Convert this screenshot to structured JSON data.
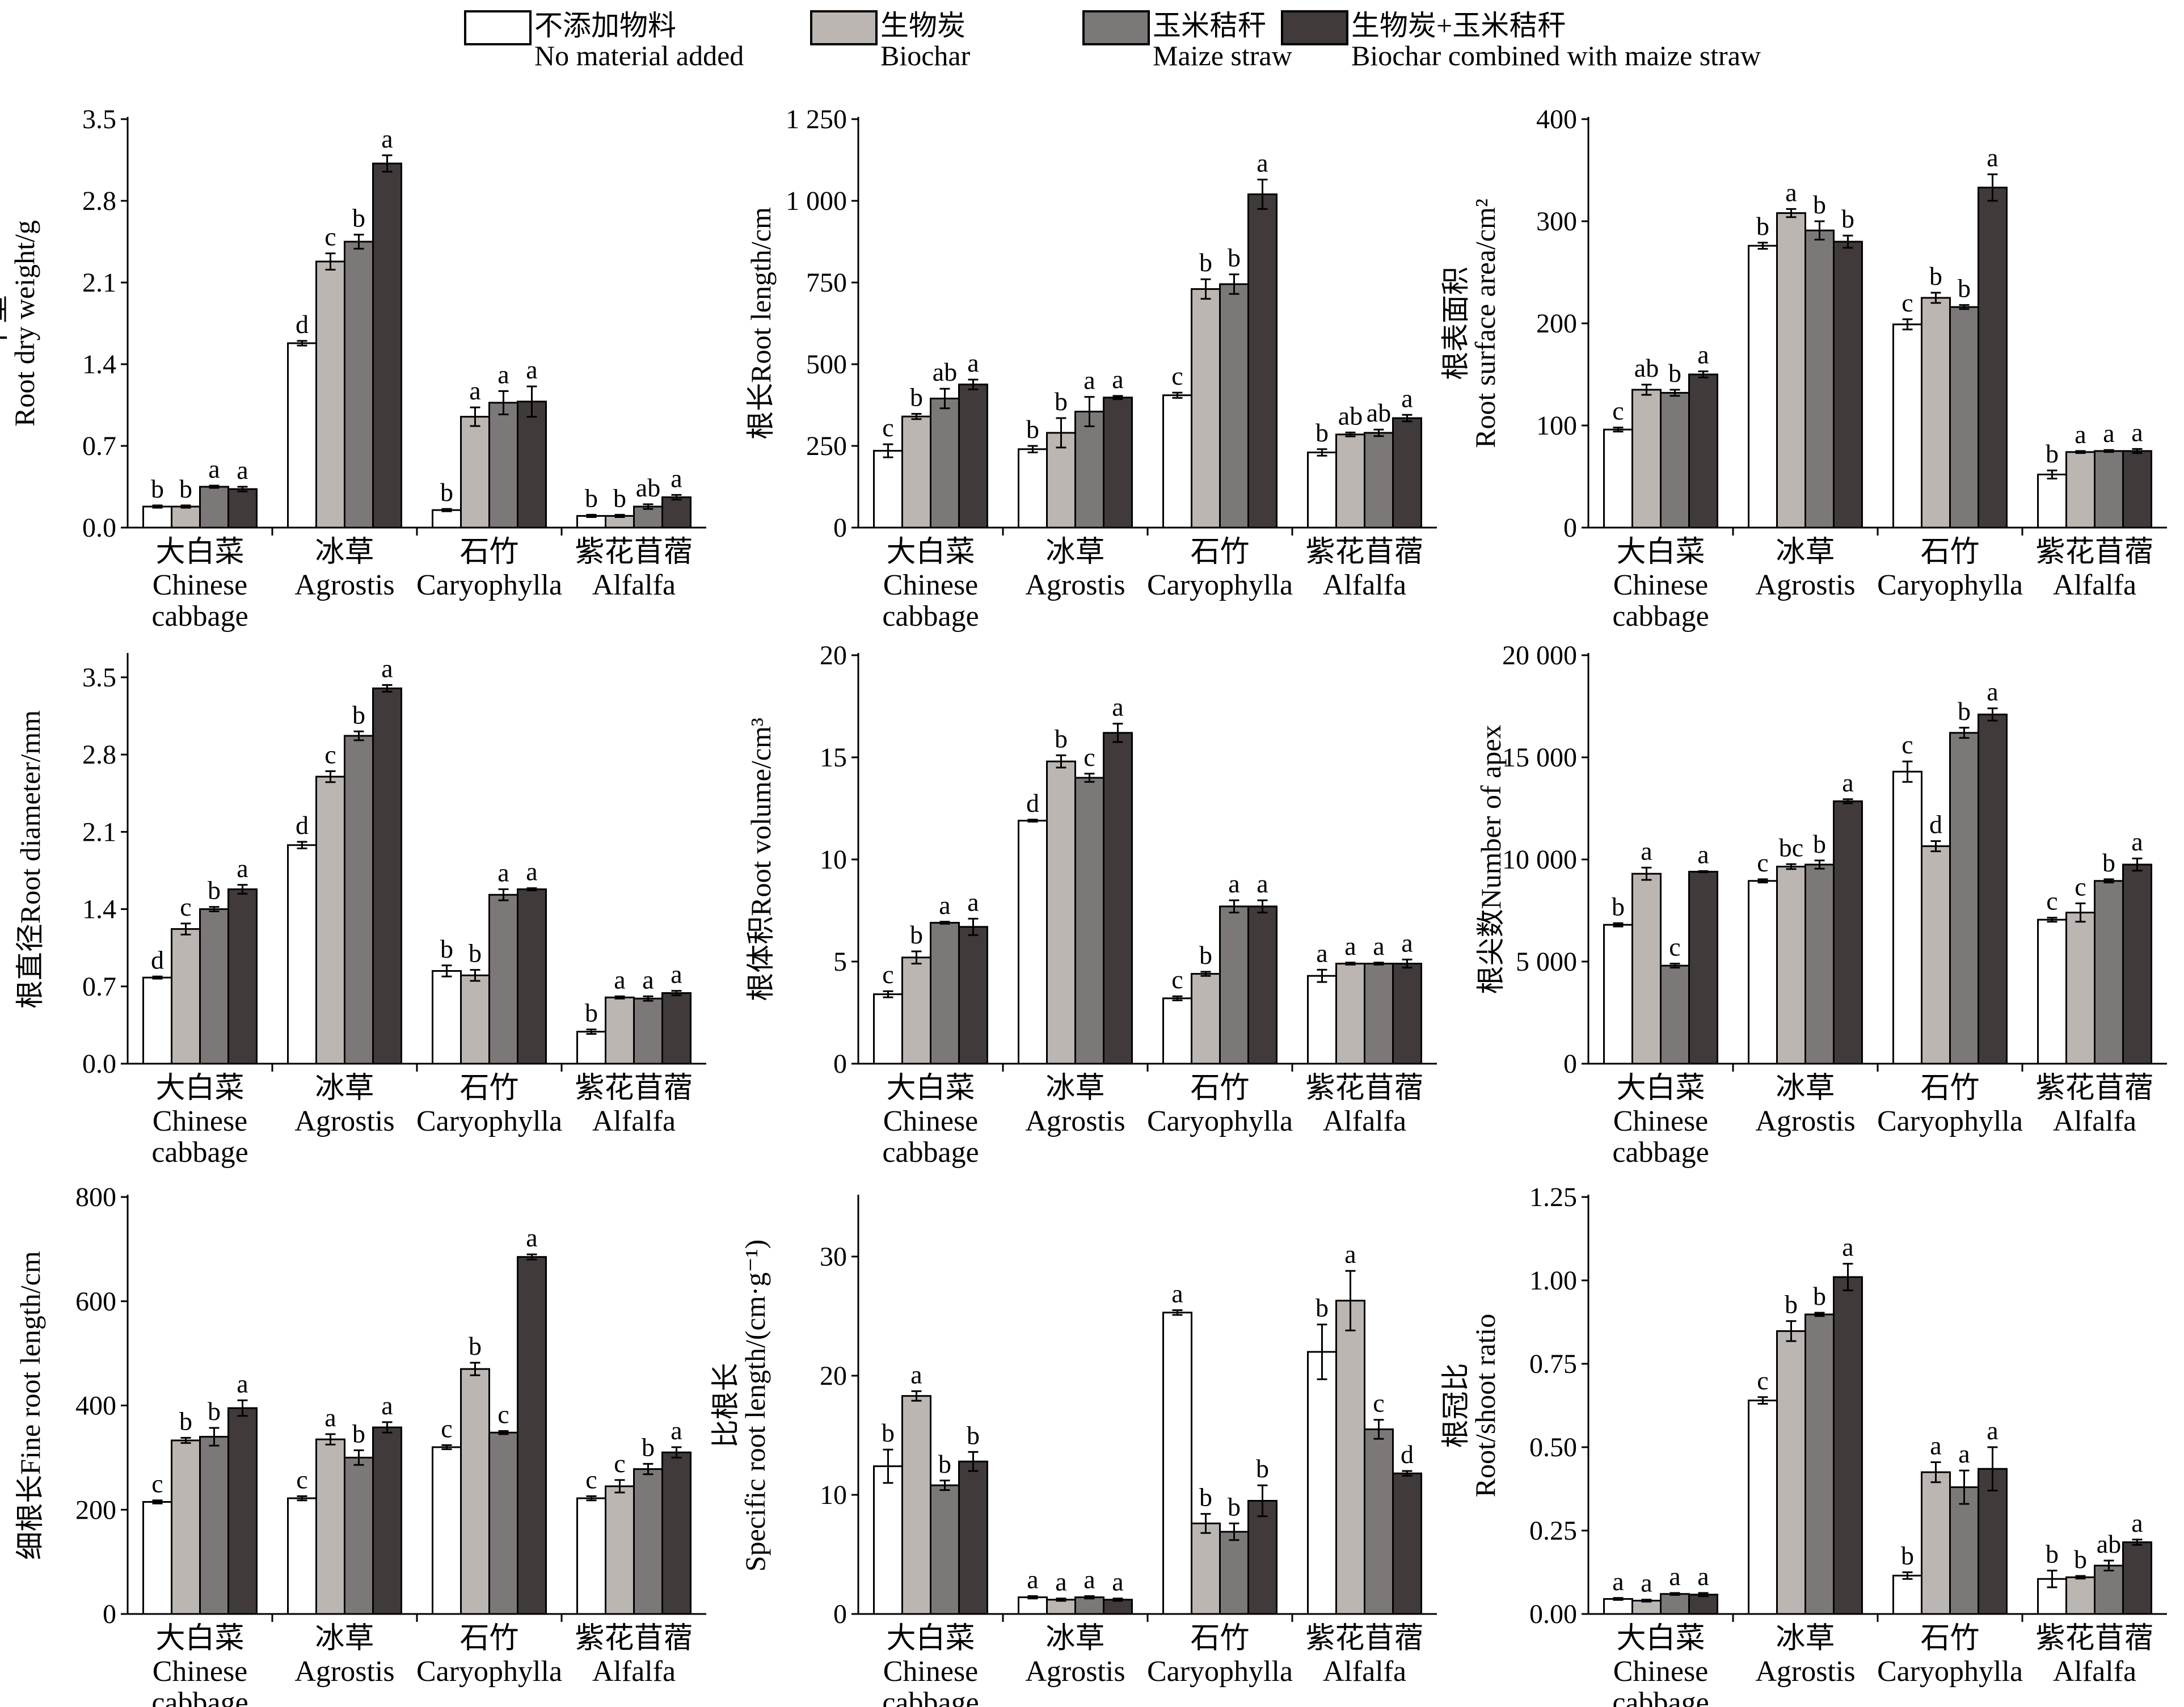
{
  "legend": {
    "items": [
      {
        "zh": "不添加物料",
        "en": "No material added",
        "color": "#ffffff"
      },
      {
        "zh": "生物炭",
        "en": "Biochar",
        "color": "#bcb6b3"
      },
      {
        "zh": "玉米秸秆",
        "en": "Maize straw",
        "color": "#7d7878"
      },
      {
        "zh": "生物炭+玉米秸秆",
        "en": "Biochar combined with maize straw",
        "color": "#403a3a"
      }
    ]
  },
  "categories": [
    {
      "zh": "大白菜",
      "en": [
        "Chinese",
        "cabbage"
      ]
    },
    {
      "zh": "冰草",
      "en": [
        "Agrostis"
      ]
    },
    {
      "zh": "石竹",
      "en": [
        "Caryophylla"
      ]
    },
    {
      "zh": "紫花苜蓿",
      "en": [
        "Alfalfa"
      ]
    }
  ],
  "chart_data": [
    {
      "type": "bar",
      "ylabel_lines": [
        "干重",
        "Root dry weight/g"
      ],
      "ylim": [
        0,
        3.5
      ],
      "yticks": [
        "0.0",
        "0.7",
        "1.4",
        "2.1",
        "2.8",
        "3.5"
      ],
      "ytick_values": [
        0,
        0.7,
        1.4,
        2.1,
        2.8,
        3.5
      ],
      "values": [
        [
          0.18,
          0.18,
          0.35,
          0.33
        ],
        [
          1.58,
          2.28,
          2.45,
          3.12
        ],
        [
          0.15,
          0.95,
          1.07,
          1.08
        ],
        [
          0.1,
          0.1,
          0.18,
          0.26
        ]
      ],
      "errors": [
        [
          0.01,
          0.01,
          0.01,
          0.02
        ],
        [
          0.02,
          0.07,
          0.06,
          0.07
        ],
        [
          0.01,
          0.08,
          0.1,
          0.13
        ],
        [
          0.01,
          0.01,
          0.02,
          0.02
        ]
      ],
      "letters": [
        [
          "b",
          "b",
          "a",
          "a"
        ],
        [
          "d",
          "c",
          "b",
          "a"
        ],
        [
          "b",
          "a",
          "a",
          "a"
        ],
        [
          "b",
          "b",
          "ab",
          "a"
        ]
      ]
    },
    {
      "type": "bar",
      "ylabel_lines": [
        "根长Root length/cm"
      ],
      "ylim": [
        0,
        1250
      ],
      "yticks": [
        "0",
        "250",
        "500",
        "750",
        "1 000",
        "1 250"
      ],
      "ytick_values": [
        0,
        250,
        500,
        750,
        1000,
        1250
      ],
      "values": [
        [
          235,
          340,
          395,
          438
        ],
        [
          240,
          290,
          355,
          398
        ],
        [
          405,
          730,
          745,
          1020
        ],
        [
          230,
          285,
          290,
          335
        ]
      ],
      "errors": [
        [
          20,
          8,
          30,
          15
        ],
        [
          10,
          45,
          45,
          5
        ],
        [
          8,
          30,
          30,
          45
        ],
        [
          10,
          6,
          10,
          10
        ]
      ],
      "letters": [
        [
          "c",
          "b",
          "ab",
          "a"
        ],
        [
          "b",
          "b",
          "a",
          "a"
        ],
        [
          "c",
          "b",
          "b",
          "a"
        ],
        [
          "b",
          "ab",
          "ab",
          "a"
        ]
      ]
    },
    {
      "type": "bar",
      "ylabel_lines": [
        "根表面积",
        "Root surface area/cm²"
      ],
      "ylim": [
        0,
        400
      ],
      "yticks": [
        "0",
        "100",
        "200",
        "300",
        "400"
      ],
      "ytick_values": [
        0,
        100,
        200,
        300,
        400
      ],
      "values": [
        [
          96,
          135,
          132,
          150
        ],
        [
          276,
          308,
          291,
          280
        ],
        [
          199,
          225,
          216,
          333
        ],
        [
          52,
          74,
          75,
          75
        ]
      ],
      "errors": [
        [
          2,
          5,
          3,
          3
        ],
        [
          3,
          4,
          9,
          6
        ],
        [
          5,
          5,
          2,
          13
        ],
        [
          4,
          1,
          1,
          2
        ]
      ],
      "letters": [
        [
          "c",
          "ab",
          "b",
          "a"
        ],
        [
          "b",
          "a",
          "b",
          "b"
        ],
        [
          "c",
          "b",
          "b",
          "a"
        ],
        [
          "b",
          "a",
          "a",
          "a"
        ]
      ]
    },
    {
      "type": "bar",
      "ylabel_lines": [
        "根直径Root diameter/mm"
      ],
      "ylim": [
        0,
        3.7
      ],
      "yticks": [
        "0.0",
        "0.7",
        "1.4",
        "2.1",
        "2.8",
        "3.5"
      ],
      "ytick_values": [
        0,
        0.7,
        1.4,
        2.1,
        2.8,
        3.5
      ],
      "values": [
        [
          0.78,
          1.22,
          1.4,
          1.58
        ],
        [
          1.98,
          2.6,
          2.97,
          3.4
        ],
        [
          0.84,
          0.8,
          1.53,
          1.58
        ],
        [
          0.29,
          0.6,
          0.59,
          0.64
        ]
      ],
      "errors": [
        [
          0.01,
          0.05,
          0.02,
          0.04
        ],
        [
          0.03,
          0.05,
          0.04,
          0.03
        ],
        [
          0.05,
          0.05,
          0.05,
          0.01
        ],
        [
          0.02,
          0.01,
          0.02,
          0.02
        ]
      ],
      "letters": [
        [
          "d",
          "c",
          "b",
          "a"
        ],
        [
          "d",
          "c",
          "b",
          "a"
        ],
        [
          "b",
          "b",
          "a",
          "a"
        ],
        [
          "b",
          "a",
          "a",
          "a"
        ]
      ]
    },
    {
      "type": "bar",
      "ylabel_lines": [
        "根体积Root volume/cm³"
      ],
      "ylim": [
        0,
        20
      ],
      "yticks": [
        "0",
        "5",
        "10",
        "15",
        "20"
      ],
      "ytick_values": [
        0,
        5,
        10,
        15,
        20
      ],
      "values": [
        [
          3.4,
          5.2,
          6.9,
          6.7
        ],
        [
          11.9,
          14.8,
          14.0,
          16.2
        ],
        [
          3.2,
          4.4,
          7.7,
          7.7
        ],
        [
          4.3,
          4.9,
          4.9,
          4.9
        ]
      ],
      "errors": [
        [
          0.15,
          0.3,
          0.05,
          0.4
        ],
        [
          0.05,
          0.3,
          0.2,
          0.45
        ],
        [
          0.1,
          0.1,
          0.3,
          0.3
        ],
        [
          0.3,
          0.05,
          0.05,
          0.2
        ]
      ],
      "letters": [
        [
          "c",
          "b",
          "a",
          "a"
        ],
        [
          "d",
          "b",
          "c",
          "a"
        ],
        [
          "c",
          "b",
          "a",
          "a"
        ],
        [
          "a",
          "a",
          "a",
          "a"
        ]
      ]
    },
    {
      "type": "bar",
      "ylabel_lines": [
        "根尖数Number of apex"
      ],
      "ylim": [
        0,
        20000
      ],
      "yticks": [
        "0",
        "5 000",
        "10 000",
        "15 000",
        "20 000"
      ],
      "ytick_values": [
        0,
        5000,
        10000,
        15000,
        20000
      ],
      "values": [
        [
          6800,
          9300,
          4800,
          9400
        ],
        [
          8950,
          9650,
          9750,
          12850
        ],
        [
          14300,
          10650,
          16200,
          17100
        ],
        [
          7050,
          7400,
          8950,
          9750
        ]
      ],
      "errors": [
        [
          80,
          300,
          100,
          30
        ],
        [
          80,
          120,
          200,
          100
        ],
        [
          500,
          250,
          250,
          300
        ],
        [
          100,
          450,
          80,
          300
        ]
      ],
      "letters": [
        [
          "b",
          "a",
          "c",
          "a"
        ],
        [
          "c",
          "bc",
          "b",
          "a"
        ],
        [
          "c",
          "d",
          "b",
          "a"
        ],
        [
          "c",
          "c",
          "b",
          "a"
        ]
      ]
    },
    {
      "type": "bar",
      "ylabel_lines": [
        "细根长Fine root length/cm"
      ],
      "ylim": [
        0,
        800
      ],
      "yticks": [
        "0",
        "200",
        "400",
        "600",
        "800"
      ],
      "ytick_values": [
        0,
        200,
        400,
        600,
        800
      ],
      "values": [
        [
          215,
          333,
          340,
          395
        ],
        [
          222,
          335,
          300,
          358
        ],
        [
          320,
          470,
          348,
          685
        ],
        [
          222,
          245,
          278,
          310
        ]
      ],
      "errors": [
        [
          3,
          5,
          17,
          15
        ],
        [
          4,
          10,
          14,
          10
        ],
        [
          4,
          12,
          3,
          5
        ],
        [
          4,
          12,
          10,
          10
        ]
      ],
      "letters": [
        [
          "c",
          "b",
          "b",
          "a"
        ],
        [
          "c",
          "a",
          "b",
          "a"
        ],
        [
          "c",
          "b",
          "c",
          "a"
        ],
        [
          "c",
          "c",
          "b",
          "a"
        ]
      ]
    },
    {
      "type": "bar",
      "ylabel_lines": [
        "比根长",
        "Specific root length/(cm·g⁻¹)"
      ],
      "ylim": [
        0,
        35
      ],
      "yticks": [
        "0",
        "10",
        "20",
        "30"
      ],
      "ytick_values": [
        0,
        10,
        20,
        30
      ],
      "values": [
        [
          12.4,
          18.3,
          10.8,
          12.8
        ],
        [
          1.4,
          1.2,
          1.4,
          1.2
        ],
        [
          25.3,
          7.6,
          6.9,
          9.5
        ],
        [
          22.0,
          26.3,
          15.5,
          11.8
        ]
      ],
      "errors": [
        [
          1.4,
          0.4,
          0.4,
          0.8
        ],
        [
          0.1,
          0.1,
          0.1,
          0.1
        ],
        [
          0.2,
          0.8,
          0.7,
          1.3
        ],
        [
          2.3,
          2.5,
          0.8,
          0.2
        ]
      ],
      "letters": [
        [
          "b",
          "a",
          "b",
          "b"
        ],
        [
          "a",
          "a",
          "a",
          "a"
        ],
        [
          "a",
          "b",
          "b",
          "b"
        ],
        [
          "b",
          "a",
          "c",
          "d"
        ]
      ]
    },
    {
      "type": "bar",
      "ylabel_lines": [
        "根冠比",
        "Root/shoot ratio"
      ],
      "ylim": [
        0,
        1.25
      ],
      "yticks": [
        "0.00",
        "0.25",
        "0.50",
        "0.75",
        "1.00",
        "1.25"
      ],
      "ytick_values": [
        0,
        0.25,
        0.5,
        0.75,
        1.0,
        1.25
      ],
      "values": [
        [
          0.045,
          0.04,
          0.06,
          0.058
        ],
        [
          0.64,
          0.848,
          0.898,
          1.01
        ],
        [
          0.115,
          0.425,
          0.38,
          0.435
        ],
        [
          0.105,
          0.11,
          0.145,
          0.215
        ]
      ],
      "errors": [
        [
          0.003,
          0.003,
          0.003,
          0.005
        ],
        [
          0.01,
          0.03,
          0.005,
          0.04
        ],
        [
          0.01,
          0.03,
          0.05,
          0.065
        ],
        [
          0.025,
          0.004,
          0.015,
          0.008
        ]
      ],
      "letters": [
        [
          "a",
          "a",
          "a",
          "a"
        ],
        [
          "c",
          "b",
          "b",
          "a"
        ],
        [
          "b",
          "a",
          "a",
          "a"
        ],
        [
          "b",
          "b",
          "ab",
          "a"
        ]
      ]
    }
  ]
}
